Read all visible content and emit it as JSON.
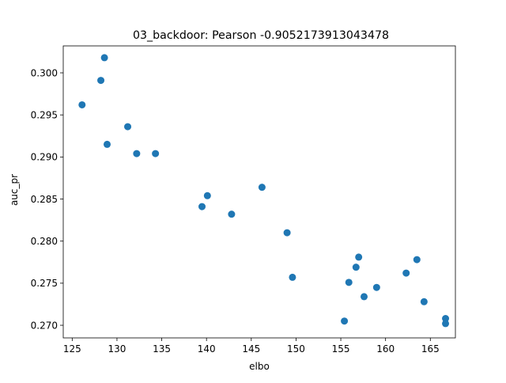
{
  "chart_data": {
    "type": "scatter",
    "title": "03_backdoor: Pearson -0.9052173913043478",
    "xlabel": "elbo",
    "ylabel": "auc_pr",
    "xlim": [
      124.0,
      167.8
    ],
    "ylim": [
      0.2685,
      0.3032
    ],
    "xticks": [
      125,
      130,
      135,
      140,
      145,
      150,
      155,
      160,
      165
    ],
    "xtick_labels": [
      "125",
      "130",
      "135",
      "140",
      "145",
      "150",
      "155",
      "160",
      "165"
    ],
    "yticks": [
      0.27,
      0.275,
      0.28,
      0.285,
      0.29,
      0.295,
      0.3
    ],
    "ytick_labels": [
      "0.270",
      "0.275",
      "0.280",
      "0.285",
      "0.290",
      "0.295",
      "0.300"
    ],
    "grid": false,
    "point_color": "#1f77b4",
    "points": [
      {
        "x": 126.1,
        "y": 0.2962
      },
      {
        "x": 128.2,
        "y": 0.2991
      },
      {
        "x": 128.6,
        "y": 0.3018
      },
      {
        "x": 128.9,
        "y": 0.2915
      },
      {
        "x": 131.2,
        "y": 0.2936
      },
      {
        "x": 132.2,
        "y": 0.2904
      },
      {
        "x": 134.3,
        "y": 0.2904
      },
      {
        "x": 139.5,
        "y": 0.2841
      },
      {
        "x": 140.1,
        "y": 0.2854
      },
      {
        "x": 142.8,
        "y": 0.2832
      },
      {
        "x": 146.2,
        "y": 0.2864
      },
      {
        "x": 149.0,
        "y": 0.281
      },
      {
        "x": 149.6,
        "y": 0.2757
      },
      {
        "x": 155.4,
        "y": 0.2705
      },
      {
        "x": 155.9,
        "y": 0.2751
      },
      {
        "x": 156.7,
        "y": 0.2769
      },
      {
        "x": 157.0,
        "y": 0.2781
      },
      {
        "x": 157.6,
        "y": 0.2734
      },
      {
        "x": 159.0,
        "y": 0.2745
      },
      {
        "x": 162.3,
        "y": 0.2762
      },
      {
        "x": 163.5,
        "y": 0.2778
      },
      {
        "x": 164.3,
        "y": 0.2728
      },
      {
        "x": 166.7,
        "y": 0.2708
      },
      {
        "x": 166.7,
        "y": 0.2702
      }
    ]
  }
}
